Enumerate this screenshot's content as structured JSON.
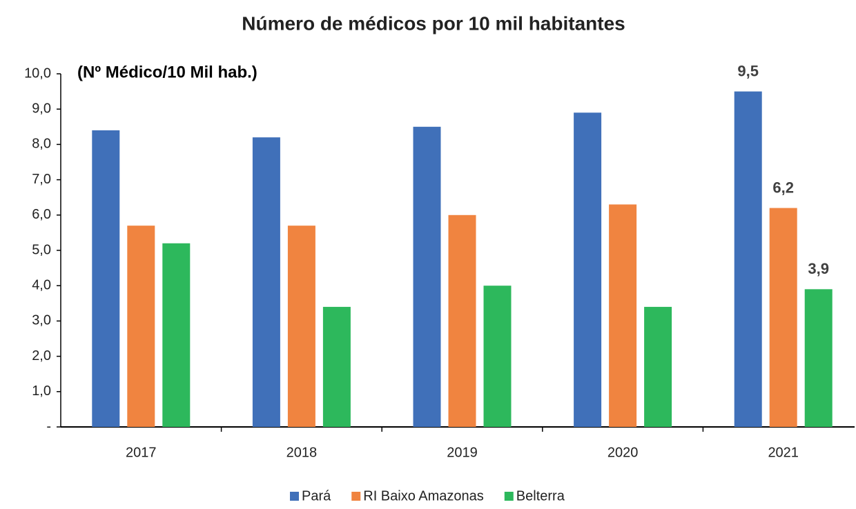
{
  "chart_data": {
    "type": "bar",
    "title": "Número de médicos por 10 mil habitantes",
    "annotation": "(Nº Médico/10 Mil hab.)",
    "categories": [
      "2017",
      "2018",
      "2019",
      "2020",
      "2021"
    ],
    "series": [
      {
        "name": "Pará",
        "color": "#4070b9",
        "values": [
          8.4,
          8.2,
          8.5,
          8.9,
          9.5
        ],
        "value_labels": [
          null,
          null,
          null,
          null,
          "9,5"
        ]
      },
      {
        "name": "RI Baixo Amazonas",
        "color": "#f08440",
        "values": [
          5.7,
          5.7,
          6.0,
          6.3,
          6.2
        ],
        "value_labels": [
          null,
          null,
          null,
          null,
          "6,2"
        ]
      },
      {
        "name": "Belterra",
        "color": "#2db85c",
        "values": [
          5.2,
          3.4,
          4.0,
          3.4,
          3.9
        ],
        "value_labels": [
          null,
          null,
          null,
          null,
          "3,9"
        ]
      }
    ],
    "ylim": [
      0,
      10
    ],
    "yticks": [
      {
        "value": 0,
        "label": "-"
      },
      {
        "value": 1,
        "label": "1,0"
      },
      {
        "value": 2,
        "label": "2,0"
      },
      {
        "value": 3,
        "label": "3,0"
      },
      {
        "value": 4,
        "label": "4,0"
      },
      {
        "value": 5,
        "label": "5,0"
      },
      {
        "value": 6,
        "label": "6,0"
      },
      {
        "value": 7,
        "label": "7,0"
      },
      {
        "value": 8,
        "label": "8,0"
      },
      {
        "value": 9,
        "label": "9,0"
      },
      {
        "value": 10,
        "label": "10,0"
      }
    ],
    "grid": false,
    "legend": "bottom"
  }
}
